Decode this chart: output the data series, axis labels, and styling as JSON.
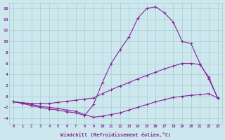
{
  "xlabel": "Windchill (Refroidissement éolien,°C)",
  "background_color": "#cce8ee",
  "line_color": "#882299",
  "grid_color": "#aacccc",
  "xlim": [
    -0.5,
    23.5
  ],
  "ylim": [
    -5,
    17
  ],
  "yticks": [
    -4,
    -2,
    0,
    2,
    4,
    6,
    8,
    10,
    12,
    14,
    16
  ],
  "xticks": [
    0,
    1,
    2,
    3,
    4,
    5,
    6,
    7,
    8,
    9,
    10,
    11,
    12,
    13,
    14,
    15,
    16,
    17,
    18,
    19,
    20,
    21,
    22,
    23
  ],
  "curve1_x": [
    0,
    1,
    2,
    3,
    4,
    5,
    6,
    7,
    8,
    9,
    10,
    11,
    12,
    13,
    14,
    15,
    16,
    17,
    18,
    19,
    20,
    21,
    22,
    23
  ],
  "curve1_y": [
    -1.0,
    -1.3,
    -1.7,
    -2.0,
    -2.3,
    -2.5,
    -2.8,
    -3.0,
    -3.5,
    -1.5,
    2.5,
    6.0,
    8.5,
    10.8,
    14.2,
    16.0,
    16.3,
    15.2,
    13.5,
    10.0,
    9.6,
    6.0,
    3.2,
    -0.3
  ],
  "curve2_x": [
    0,
    2,
    3,
    4,
    5,
    6,
    7,
    8,
    9,
    10,
    11,
    12,
    13,
    14,
    15,
    16,
    17,
    18,
    19,
    20,
    21,
    22,
    23
  ],
  "curve2_y": [
    -1.0,
    -1.3,
    -1.3,
    -1.3,
    -1.1,
    -0.9,
    -0.7,
    -0.5,
    -0.3,
    0.5,
    1.2,
    1.9,
    2.5,
    3.2,
    3.8,
    4.4,
    5.0,
    5.5,
    6.0,
    6.0,
    5.8,
    3.5,
    -0.3
  ],
  "curve3_x": [
    0,
    1,
    2,
    3,
    4,
    5,
    6,
    7,
    8,
    9,
    10,
    11,
    12,
    13,
    14,
    15,
    16,
    17,
    18,
    19,
    20,
    21,
    22,
    23
  ],
  "curve3_y": [
    -1.0,
    -1.2,
    -1.5,
    -1.8,
    -2.0,
    -2.2,
    -2.5,
    -2.7,
    -3.3,
    -3.8,
    -3.6,
    -3.3,
    -3.0,
    -2.5,
    -2.0,
    -1.5,
    -1.0,
    -0.6,
    -0.2,
    0.0,
    0.2,
    0.3,
    0.5,
    -0.3
  ]
}
